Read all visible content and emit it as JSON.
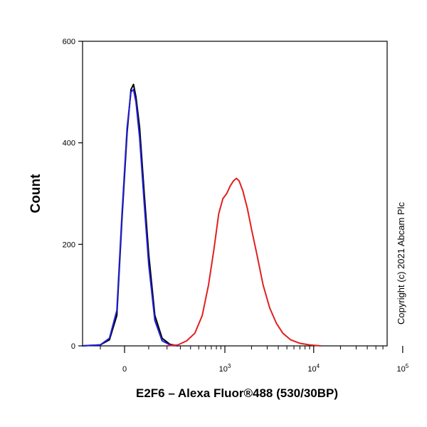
{
  "chart_data": {
    "type": "line",
    "title": "",
    "xlabel": "E2F6 – Alexa Fluor®488 (530/30BP)",
    "ylabel": "Count",
    "ylim": [
      0,
      600
    ],
    "y_ticks": [
      {
        "value": 0,
        "label": "0"
      },
      {
        "value": 200,
        "label": "200"
      },
      {
        "value": 400,
        "label": "400"
      },
      {
        "value": 600,
        "label": "600"
      }
    ],
    "x_scale": "biexponential",
    "x_ticks": [
      {
        "value": 0,
        "base": "0",
        "exp": ""
      },
      {
        "value": 1000,
        "base": "10",
        "exp": "3"
      },
      {
        "value": 10000,
        "base": "10",
        "exp": "4"
      },
      {
        "value": 100000,
        "base": "10",
        "exp": "5"
      }
    ],
    "grid": false,
    "legend": "none",
    "series": [
      {
        "color": "#000000",
        "points": [
          [
            -200,
            0
          ],
          [
            -100,
            2
          ],
          [
            -60,
            12
          ],
          [
            -30,
            60
          ],
          [
            -10,
            250
          ],
          [
            10,
            420
          ],
          [
            25,
            505
          ],
          [
            35,
            515
          ],
          [
            45,
            490
          ],
          [
            60,
            430
          ],
          [
            80,
            300
          ],
          [
            100,
            180
          ],
          [
            130,
            60
          ],
          [
            170,
            15
          ],
          [
            220,
            3
          ],
          [
            280,
            0
          ]
        ]
      },
      {
        "color": "#1f1fd8",
        "points": [
          [
            -200,
            0
          ],
          [
            -100,
            2
          ],
          [
            -60,
            15
          ],
          [
            -30,
            70
          ],
          [
            -10,
            260
          ],
          [
            10,
            430
          ],
          [
            25,
            500
          ],
          [
            35,
            505
          ],
          [
            45,
            480
          ],
          [
            60,
            410
          ],
          [
            80,
            280
          ],
          [
            100,
            160
          ],
          [
            130,
            50
          ],
          [
            170,
            10
          ],
          [
            220,
            2
          ],
          [
            280,
            0
          ]
        ]
      },
      {
        "color": "#e02020",
        "points": [
          [
            200,
            0
          ],
          [
            280,
            2
          ],
          [
            360,
            10
          ],
          [
            450,
            25
          ],
          [
            550,
            60
          ],
          [
            650,
            120
          ],
          [
            750,
            190
          ],
          [
            850,
            260
          ],
          [
            950,
            290
          ],
          [
            1050,
            300
          ],
          [
            1150,
            315
          ],
          [
            1250,
            325
          ],
          [
            1350,
            330
          ],
          [
            1450,
            325
          ],
          [
            1600,
            305
          ],
          [
            1800,
            270
          ],
          [
            2000,
            230
          ],
          [
            2300,
            180
          ],
          [
            2700,
            120
          ],
          [
            3200,
            75
          ],
          [
            3800,
            45
          ],
          [
            4500,
            25
          ],
          [
            5500,
            12
          ],
          [
            7000,
            5
          ],
          [
            9000,
            2
          ],
          [
            12000,
            0
          ]
        ]
      }
    ]
  },
  "copyright": "Copyright (c) 2021 Abcam Plc"
}
